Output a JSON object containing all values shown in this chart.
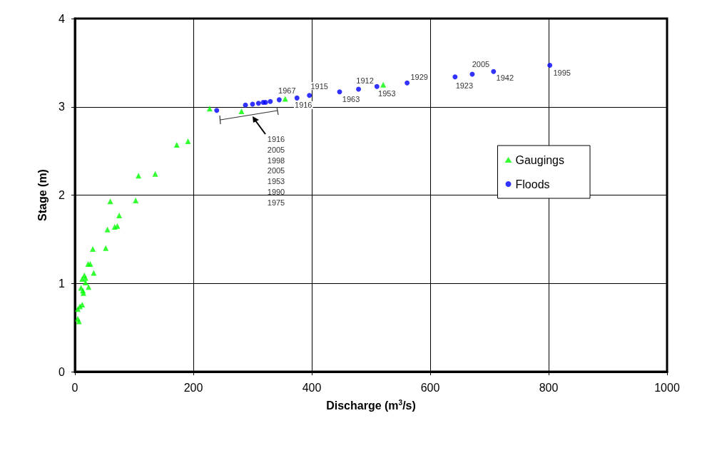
{
  "chart_data": {
    "type": "scatter",
    "xlabel": "Discharge (m$^{3}$/s)",
    "ylabel": "Stage (m)",
    "xlim": [
      0,
      1000
    ],
    "ylim": [
      0,
      4
    ],
    "xticks": [
      0,
      200,
      400,
      600,
      800,
      1000
    ],
    "yticks": [
      0,
      1,
      2,
      3,
      4
    ],
    "grid": true,
    "legend": "right",
    "series": [
      {
        "name": "Gaugings",
        "color": "#00ff00",
        "marker": "triangle",
        "x": [
          4.8,
          6.8,
          4.8,
          8.4,
          12.3,
          14.3,
          13.5,
          10.3,
          23.1,
          17.9,
          12.3,
          17.9,
          15.9,
          31.8,
          22.3,
          25.9,
          30.2,
          52.1,
          54.9,
          67.2,
          71.6,
          74.8,
          59.7,
          102.6,
          107.4,
          135.6,
          172,
          191,
          227.5,
          281.3,
          355.2,
          520.7
        ],
        "values": [
          0.6,
          0.57,
          0.71,
          0.74,
          0.76,
          0.89,
          0.92,
          0.95,
          0.96,
          1.01,
          1.05,
          1.06,
          1.09,
          1.12,
          1.22,
          1.22,
          1.39,
          1.4,
          1.61,
          1.64,
          1.65,
          1.77,
          1.93,
          1.94,
          2.22,
          2.24,
          2.57,
          2.61,
          2.98,
          2.95,
          3.09,
          3.25
        ]
      },
      {
        "name": "Floods",
        "color": "#0000ff",
        "marker": "circle",
        "x": [
          239.5,
          288,
          300,
          310,
          318,
          322,
          330,
          345,
          375,
          396,
          447,
          479,
          510,
          561,
          642,
          671,
          707,
          802
        ],
        "values": [
          2.96,
          3.02,
          3.03,
          3.04,
          3.05,
          3.05,
          3.06,
          3.08,
          3.1,
          3.13,
          3.17,
          3.2,
          3.23,
          3.27,
          3.34,
          3.37,
          3.4,
          3.47
        ]
      }
    ],
    "annotations": [
      {
        "text": "1967",
        "x": 345,
        "y": 3.08
      },
      {
        "text": "1916",
        "x": 375,
        "y": 3.1
      },
      {
        "text": "1915",
        "x": 396,
        "y": 3.13
      },
      {
        "text": "1963",
        "x": 447,
        "y": 3.17
      },
      {
        "text": "1912",
        "x": 479,
        "y": 3.2
      },
      {
        "text": "1953",
        "x": 510,
        "y": 3.23
      },
      {
        "text": "1929",
        "x": 561,
        "y": 3.27
      },
      {
        "text": "1923",
        "x": 642,
        "y": 3.34
      },
      {
        "text": "2005",
        "x": 671,
        "y": 3.37
      },
      {
        "text": "1942",
        "x": 707,
        "y": 3.4
      },
      {
        "text": "1995",
        "x": 802,
        "y": 3.47
      },
      "1916\n2005\n1998\n2005\n1953\n1990\n1975"
    ]
  }
}
